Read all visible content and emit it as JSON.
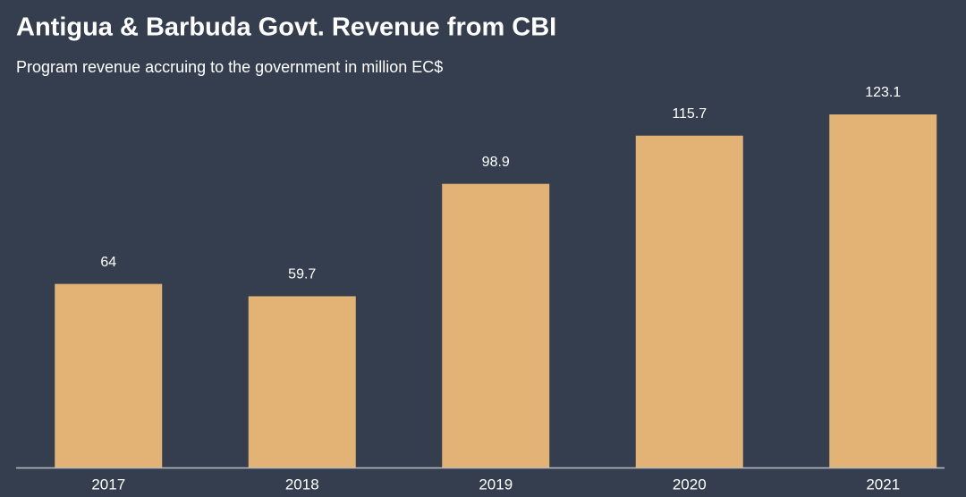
{
  "chart_data": {
    "type": "bar",
    "title": "Antigua & Barbuda Govt. Revenue from CBI",
    "subtitle": "Program revenue accruing to the government in million EC$",
    "categories": [
      "2017",
      "2018",
      "2019",
      "2020",
      "2021"
    ],
    "values": [
      64,
      59.7,
      98.9,
      115.7,
      123.1
    ],
    "color": "#e3b275"
  }
}
